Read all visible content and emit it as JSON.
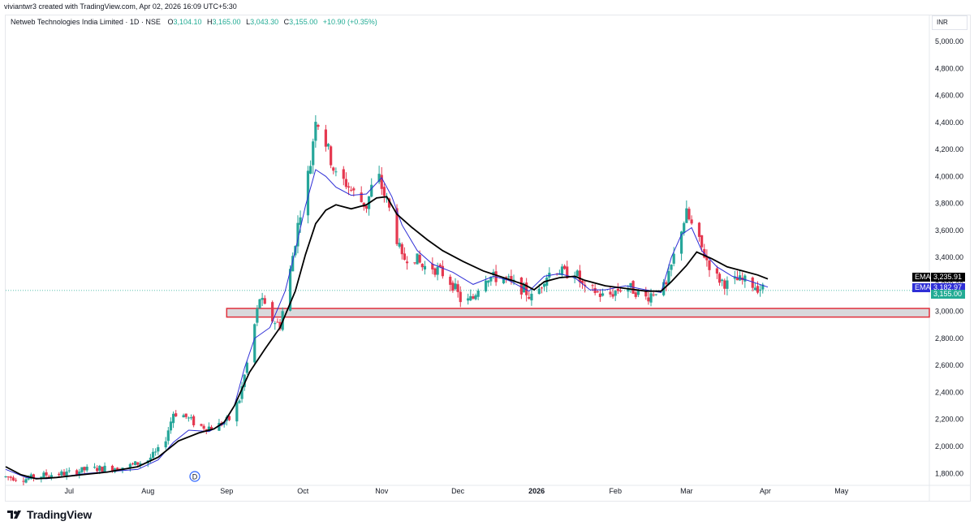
{
  "credit": "viviantwr3 created with TradingView.com, Apr 02, 2026 16:09 UTC+5:30",
  "legend": {
    "symbol": "Netweb Technologies India Limited · 1D · NSE",
    "o_label": "O",
    "o_value": "3,104.10",
    "h_label": "H",
    "h_value": "3,165.00",
    "l_label": "L",
    "l_value": "3,043.30",
    "c_label": "C",
    "c_value": "3,155.00",
    "change": "+10.90 (+0.35%)"
  },
  "currency": "INR",
  "brand": "TradingView",
  "dividend_marker": "D",
  "chart_data": {
    "type": "candlestick",
    "price_scale": "linear",
    "ylim": [
      1720,
      5080
    ],
    "yticks": [
      "5,000.00",
      "4,800.00",
      "4,600.00",
      "4,400.00",
      "4,200.00",
      "4,000.00",
      "3,800.00",
      "3,600.00",
      "3,400.00",
      "3,200.00",
      "3,000.00",
      "2,800.00",
      "2,600.00",
      "2,400.00",
      "2,200.00",
      "2,000.00",
      "1,800.00"
    ],
    "ytick_values": [
      5000,
      4800,
      4600,
      4400,
      4200,
      4000,
      3800,
      3600,
      3400,
      3200,
      3000,
      2800,
      2600,
      2400,
      2200,
      2000,
      1800
    ],
    "xticks": [
      {
        "label": "Jul",
        "day": 25,
        "bold": false
      },
      {
        "label": "Aug",
        "day": 56,
        "bold": false
      },
      {
        "label": "Sep",
        "day": 87,
        "bold": false
      },
      {
        "label": "Oct",
        "day": 117,
        "bold": false
      },
      {
        "label": "Nov",
        "day": 148,
        "bold": false
      },
      {
        "label": "Dec",
        "day": 178,
        "bold": false
      },
      {
        "label": "2026",
        "day": 209,
        "bold": true
      },
      {
        "label": "Feb",
        "day": 240,
        "bold": false
      },
      {
        "label": "Mar",
        "day": 268,
        "bold": false
      },
      {
        "label": "Apr",
        "day": 299,
        "bold": false
      },
      {
        "label": "May",
        "day": 329,
        "bold": false
      }
    ],
    "xlim": [
      0,
      374
    ],
    "price_path": [
      [
        0,
        1775
      ],
      [
        8,
        1760
      ],
      [
        16,
        1790
      ],
      [
        24,
        1800
      ],
      [
        32,
        1830
      ],
      [
        40,
        1840
      ],
      [
        48,
        1850
      ],
      [
        56,
        1900
      ],
      [
        62,
        2000
      ],
      [
        66,
        2250
      ],
      [
        70,
        2230
      ],
      [
        76,
        2150
      ],
      [
        82,
        2140
      ],
      [
        88,
        2200
      ],
      [
        92,
        2350
      ],
      [
        96,
        2700
      ],
      [
        100,
        3100
      ],
      [
        104,
        2950
      ],
      [
        108,
        2900
      ],
      [
        112,
        3300
      ],
      [
        116,
        3750
      ],
      [
        120,
        4100
      ],
      [
        122,
        4450
      ],
      [
        126,
        4250
      ],
      [
        130,
        4000
      ],
      [
        134,
        3950
      ],
      [
        138,
        3850
      ],
      [
        142,
        3780
      ],
      [
        146,
        4050
      ],
      [
        148,
        3920
      ],
      [
        152,
        3700
      ],
      [
        156,
        3380
      ],
      [
        160,
        3430
      ],
      [
        164,
        3330
      ],
      [
        168,
        3330
      ],
      [
        172,
        3280
      ],
      [
        176,
        3200
      ],
      [
        180,
        3050
      ],
      [
        184,
        3100
      ],
      [
        188,
        3270
      ],
      [
        192,
        3250
      ],
      [
        196,
        3250
      ],
      [
        200,
        3200
      ],
      [
        204,
        3160
      ],
      [
        208,
        3080
      ],
      [
        212,
        3250
      ],
      [
        216,
        3320
      ],
      [
        220,
        3280
      ],
      [
        224,
        3300
      ],
      [
        228,
        3150
      ],
      [
        232,
        3150
      ],
      [
        236,
        3100
      ],
      [
        240,
        3150
      ],
      [
        244,
        3190
      ],
      [
        248,
        3150
      ],
      [
        252,
        3100
      ],
      [
        256,
        3160
      ],
      [
        260,
        3180
      ],
      [
        264,
        3480
      ],
      [
        266,
        3620
      ],
      [
        268,
        3720
      ],
      [
        272,
        3550
      ],
      [
        276,
        3380
      ],
      [
        280,
        3250
      ],
      [
        284,
        3200
      ],
      [
        288,
        3230
      ],
      [
        292,
        3220
      ],
      [
        296,
        3180
      ],
      [
        300,
        3155
      ]
    ],
    "shadow_direction": 1,
    "series": [
      {
        "name": "EMA",
        "value": "3,235.91",
        "color": "#000000"
      },
      {
        "name": "EMA",
        "value": "3,182.97",
        "color": "#2e2ed6"
      }
    ],
    "ema_black": [
      [
        0,
        1850
      ],
      [
        6,
        1790
      ],
      [
        12,
        1760
      ],
      [
        20,
        1770
      ],
      [
        30,
        1790
      ],
      [
        40,
        1810
      ],
      [
        52,
        1850
      ],
      [
        60,
        1920
      ],
      [
        68,
        2040
      ],
      [
        76,
        2100
      ],
      [
        82,
        2130
      ],
      [
        86,
        2180
      ],
      [
        90,
        2300
      ],
      [
        96,
        2550
      ],
      [
        102,
        2720
      ],
      [
        108,
        2880
      ],
      [
        114,
        3150
      ],
      [
        118,
        3420
      ],
      [
        122,
        3650
      ],
      [
        126,
        3750
      ],
      [
        130,
        3790
      ],
      [
        136,
        3760
      ],
      [
        142,
        3790
      ],
      [
        146,
        3840
      ],
      [
        150,
        3850
      ],
      [
        154,
        3720
      ],
      [
        160,
        3620
      ],
      [
        166,
        3530
      ],
      [
        172,
        3450
      ],
      [
        180,
        3370
      ],
      [
        188,
        3300
      ],
      [
        196,
        3250
      ],
      [
        204,
        3200
      ],
      [
        208,
        3160
      ],
      [
        212,
        3220
      ],
      [
        218,
        3250
      ],
      [
        224,
        3260
      ],
      [
        228,
        3230
      ],
      [
        236,
        3190
      ],
      [
        244,
        3170
      ],
      [
        252,
        3150
      ],
      [
        258,
        3150
      ],
      [
        262,
        3220
      ],
      [
        268,
        3340
      ],
      [
        272,
        3440
      ],
      [
        278,
        3390
      ],
      [
        284,
        3330
      ],
      [
        290,
        3300
      ],
      [
        296,
        3270
      ],
      [
        300,
        3240
      ]
    ],
    "ema_blue": [
      [
        0,
        1830
      ],
      [
        8,
        1770
      ],
      [
        16,
        1760
      ],
      [
        24,
        1780
      ],
      [
        32,
        1800
      ],
      [
        42,
        1815
      ],
      [
        52,
        1830
      ],
      [
        60,
        1900
      ],
      [
        66,
        2030
      ],
      [
        72,
        2120
      ],
      [
        80,
        2110
      ],
      [
        86,
        2170
      ],
      [
        90,
        2300
      ],
      [
        94,
        2580
      ],
      [
        98,
        2800
      ],
      [
        104,
        2880
      ],
      [
        110,
        3150
      ],
      [
        114,
        3450
      ],
      [
        118,
        3780
      ],
      [
        122,
        4050
      ],
      [
        126,
        4000
      ],
      [
        130,
        3920
      ],
      [
        136,
        3860
      ],
      [
        142,
        3870
      ],
      [
        148,
        3990
      ],
      [
        152,
        3850
      ],
      [
        156,
        3640
      ],
      [
        162,
        3450
      ],
      [
        168,
        3350
      ],
      [
        176,
        3290
      ],
      [
        184,
        3200
      ],
      [
        192,
        3260
      ],
      [
        198,
        3230
      ],
      [
        206,
        3150
      ],
      [
        212,
        3260
      ],
      [
        218,
        3280
      ],
      [
        224,
        3250
      ],
      [
        230,
        3160
      ],
      [
        236,
        3160
      ],
      [
        244,
        3190
      ],
      [
        252,
        3160
      ],
      [
        258,
        3140
      ],
      [
        262,
        3400
      ],
      [
        266,
        3570
      ],
      [
        270,
        3620
      ],
      [
        274,
        3450
      ],
      [
        280,
        3330
      ],
      [
        286,
        3260
      ],
      [
        292,
        3230
      ],
      [
        300,
        3180
      ]
    ],
    "last_price": {
      "value": "3,155.00",
      "color": "#22ab94"
    },
    "support_zone": {
      "from_day": 87,
      "low": 2958,
      "high": 3022,
      "color": "#e0303b"
    },
    "candle_up_color": "#26a69a",
    "candle_down_color": "#e53950"
  }
}
